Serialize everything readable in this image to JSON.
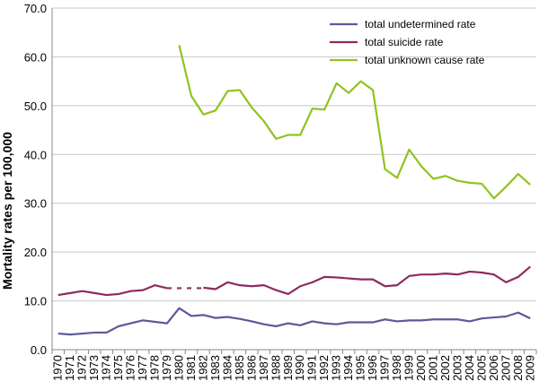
{
  "chart_data": {
    "type": "line",
    "ylabel": "Mortality rates per 100,000",
    "xlabel": "",
    "ylim": [
      0,
      70
    ],
    "yticks": [
      "0.0",
      "10.0",
      "20.0",
      "30.0",
      "40.0",
      "50.0",
      "60.0",
      "70.0"
    ],
    "ytick_values": [
      0,
      10,
      20,
      30,
      40,
      50,
      60,
      70
    ],
    "x": [
      "1970",
      "1971",
      "1972",
      "1973",
      "1974",
      "1975",
      "1976",
      "1977",
      "1978",
      "1979",
      "1980",
      "1981",
      "1982",
      "1983",
      "1984",
      "1985",
      "1986",
      "1987",
      "1988",
      "1989",
      "1990",
      "1991",
      "1992",
      "1993",
      "1994",
      "1995",
      "1996",
      "1997",
      "1998",
      "1999",
      "2000",
      "2001",
      "2002",
      "2003",
      "2004",
      "2005",
      "2006",
      "2007",
      "2008",
      "2009"
    ],
    "grid": "horizontal",
    "legend_position": "top-right",
    "series": [
      {
        "name": "total undetermined rate",
        "color": "#5a5a9a",
        "values": [
          3.3,
          3.1,
          3.3,
          3.5,
          3.5,
          4.8,
          5.4,
          6.0,
          5.7,
          5.4,
          8.5,
          6.9,
          7.1,
          6.5,
          6.7,
          6.3,
          5.8,
          5.2,
          4.8,
          5.4,
          5.0,
          5.8,
          5.4,
          5.2,
          5.6,
          5.6,
          5.6,
          6.2,
          5.8,
          6.0,
          6.0,
          6.2,
          6.2,
          6.2,
          5.8,
          6.4,
          6.6,
          6.8,
          7.6,
          6.4
        ]
      },
      {
        "name": "total suicide rate",
        "color": "#8e2a5e",
        "values": [
          11.2,
          11.6,
          12.0,
          11.6,
          11.2,
          11.4,
          12.0,
          12.2,
          13.2,
          12.6,
          null,
          null,
          12.7,
          12.4,
          13.8,
          13.2,
          13.0,
          13.2,
          12.2,
          11.4,
          13.0,
          13.8,
          14.9,
          14.8,
          14.6,
          14.4,
          14.4,
          13.0,
          13.2,
          15.1,
          15.4,
          15.4,
          15.6,
          15.4,
          16.0,
          15.8,
          15.4,
          13.8,
          14.9,
          17.0
        ],
        "dashed_gap": [
          9,
          12,
          12.6
        ]
      },
      {
        "name": "total unknown cause rate",
        "color": "#8fc31f",
        "values": [
          null,
          null,
          null,
          null,
          null,
          null,
          null,
          null,
          null,
          null,
          62.4,
          52.0,
          48.2,
          49.0,
          53.0,
          53.2,
          49.6,
          46.8,
          43.2,
          44.0,
          44.0,
          49.4,
          49.2,
          54.6,
          52.6,
          55.0,
          53.2,
          37.0,
          35.2,
          41.0,
          37.6,
          35.0,
          35.6,
          34.6,
          34.2,
          34.0,
          31.0,
          33.4,
          36.0,
          33.8
        ]
      }
    ]
  }
}
